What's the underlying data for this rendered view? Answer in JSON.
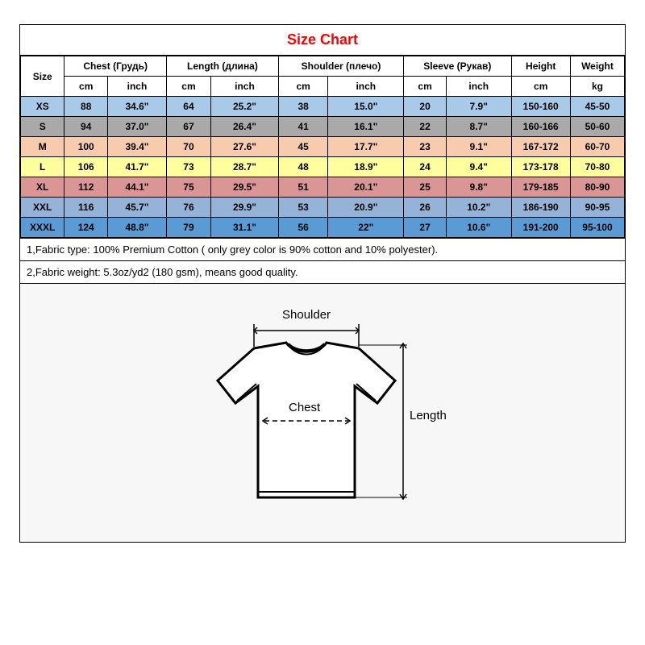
{
  "title": "Size Chart",
  "title_color": "#ff0000",
  "columns": {
    "size": "Size",
    "chest": "Chest (Грудь)",
    "length": "Length (длина)",
    "shoulder": "Shoulder (плечо)",
    "sleeve": "Sleeve (Рукав)",
    "height": "Height",
    "weight": "Weight",
    "unit_cm": "cm",
    "unit_inch": "inch",
    "unit_kg": "kg"
  },
  "rows": [
    {
      "size": "XS",
      "chest_cm": "88",
      "chest_in": "34.6\"",
      "len_cm": "64",
      "len_in": "25.2\"",
      "sh_cm": "38",
      "sh_in": "15.0\"",
      "sl_cm": "20",
      "sl_in": "7.9\"",
      "h": "150-160",
      "w": "45-50",
      "bg": "#a8c9e8"
    },
    {
      "size": "S",
      "chest_cm": "94",
      "chest_in": "37.0\"",
      "len_cm": "67",
      "len_in": "26.4\"",
      "sh_cm": "41",
      "sh_in": "16.1\"",
      "sl_cm": "22",
      "sl_in": "8.7\"",
      "h": "160-166",
      "w": "50-60",
      "bg": "#a9a9a9"
    },
    {
      "size": "M",
      "chest_cm": "100",
      "chest_in": "39.4\"",
      "len_cm": "70",
      "len_in": "27.6\"",
      "sh_cm": "45",
      "sh_in": "17.7\"",
      "sl_cm": "23",
      "sl_in": "9.1\"",
      "h": "167-172",
      "w": "60-70",
      "bg": "#f8cbae"
    },
    {
      "size": "L",
      "chest_cm": "106",
      "chest_in": "41.7\"",
      "len_cm": "73",
      "len_in": "28.7\"",
      "sh_cm": "48",
      "sh_in": "18.9\"",
      "sl_cm": "24",
      "sl_in": "9.4\"",
      "h": "173-178",
      "w": "70-80",
      "bg": "#ffff9e"
    },
    {
      "size": "XL",
      "chest_cm": "112",
      "chest_in": "44.1\"",
      "len_cm": "75",
      "len_in": "29.5\"",
      "sh_cm": "51",
      "sh_in": "20.1\"",
      "sl_cm": "25",
      "sl_in": "9.8\"",
      "h": "179-185",
      "w": "80-90",
      "bg": "#d99694"
    },
    {
      "size": "XXL",
      "chest_cm": "116",
      "chest_in": "45.7\"",
      "len_cm": "76",
      "len_in": "29.9\"",
      "sh_cm": "53",
      "sh_in": "20.9\"",
      "sl_cm": "26",
      "sl_in": "10.2\"",
      "h": "186-190",
      "w": "90-95",
      "bg": "#95b3d7"
    },
    {
      "size": "XXXL",
      "chest_cm": "124",
      "chest_in": "48.8\"",
      "len_cm": "79",
      "len_in": "31.1\"",
      "sh_cm": "56",
      "sh_in": "22\"",
      "sl_cm": "27",
      "sl_in": "10.6\"",
      "h": "191-200",
      "w": "95-100",
      "bg": "#5b9bd5"
    }
  ],
  "notes": [
    "1,Fabric type: 100% Premium Cotton ( only grey color is 90% cotton and 10% polyester).",
    "2,Fabric weight: 5.3oz/yd2 (180 gsm), means good quality."
  ],
  "diagram": {
    "shoulder": "Shoulder",
    "chest": "Chest",
    "length": "Length",
    "bg": "#f7f7f7",
    "stroke": "#000000"
  },
  "style": {
    "border_color": "#000000",
    "header_bg": "#ffffff",
    "font_size_table": 12,
    "font_size_title": 18,
    "font_size_notes": 13
  }
}
